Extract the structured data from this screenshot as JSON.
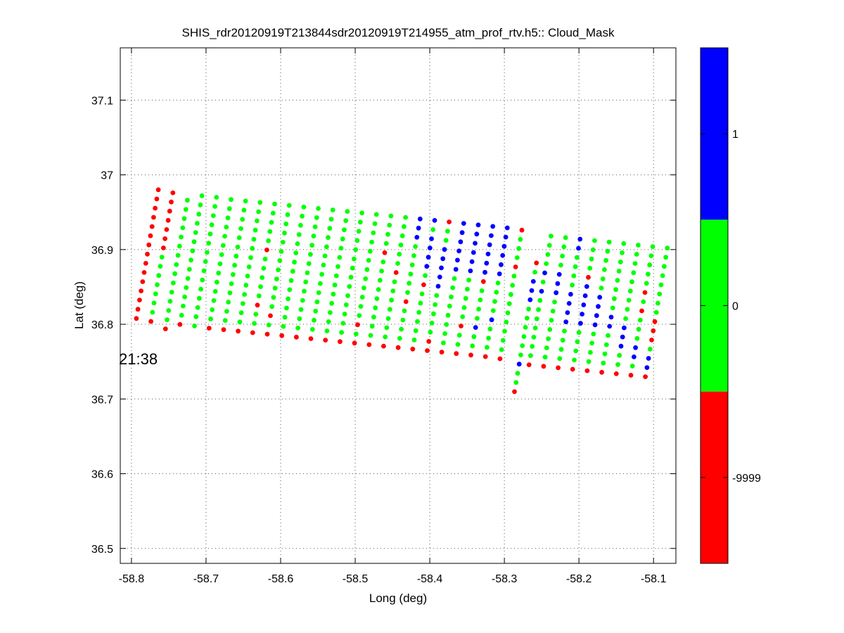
{
  "chart_data": {
    "type": "scatter",
    "title": "SHIS_rdr20120919T213844sdr20120919T214955_atm_prof_rtv.h5:: Cloud_Mask",
    "xlabel": "Long (deg)",
    "ylabel": "Lat (deg)",
    "xlim": [
      -58.815,
      -58.07
    ],
    "ylim": [
      36.48,
      37.17
    ],
    "xticks": [
      -58.8,
      -58.7,
      -58.6,
      -58.5,
      -58.4,
      -58.3,
      -58.2,
      -58.1
    ],
    "xtick_labels": [
      "-58.8",
      "-58.7",
      "-58.6",
      "-58.5",
      "-58.4",
      "-58.3",
      "-58.2",
      "-58.1"
    ],
    "yticks": [
      36.5,
      36.6,
      36.7,
      36.8,
      36.9,
      37.0,
      37.1
    ],
    "ytick_labels": [
      "36.5",
      "36.6",
      "36.7",
      "36.8",
      "36.9",
      "37",
      "37.1"
    ],
    "grid": true,
    "annotation": {
      "text": "21:38",
      "lon": -58.815,
      "lat": 36.754
    },
    "colorbar": {
      "classes": [
        {
          "value": -9999,
          "label": "-9999",
          "color": "#ff0000"
        },
        {
          "value": 0,
          "label": "0",
          "color": "#00ff00"
        },
        {
          "value": 1,
          "label": "1",
          "color": "#0000ff"
        }
      ]
    },
    "scan_blocks": [
      {
        "rows": 15,
        "step_lon": -0.0021,
        "step_lat": -0.0123,
        "lines": [
          {
            "start": [
              -58.764,
              36.98
            ],
            "codes": "RRRRRRRRRRRRRRR"
          },
          {
            "start": [
              -58.7445,
              36.976
            ],
            "codes": "RRRRRRRGGGGGGGR"
          },
          {
            "start": [
              -58.725,
              36.966
            ],
            "codes": "GGGGGGGGGGGGGGR"
          },
          {
            "start": [
              -58.7055,
              36.972
            ],
            "codes": "GGGGGGGGGGGGGGR"
          },
          {
            "start": [
              -58.686,
              36.97
            ],
            "codes": "GGGGGGGGGGGGGGG"
          },
          {
            "start": [
              -58.6665,
              36.967
            ],
            "codes": "GGGGGGGGGGGGGGR"
          },
          {
            "start": [
              -58.647,
              36.965
            ],
            "codes": "GGGGGGGGGGGGGGR"
          },
          {
            "start": [
              -58.6275,
              36.963
            ],
            "codes": "GGGGGGGGGGGGGGR"
          },
          {
            "start": [
              -58.608,
              36.961
            ],
            "codes": "GGGGGRGGGGGRGGR"
          },
          {
            "start": [
              -58.5885,
              36.959
            ],
            "codes": "GGGGGGGGGGGGRGR"
          },
          {
            "start": [
              -58.569,
              36.957
            ],
            "codes": "GGGGGGGGGGGGGGR"
          },
          {
            "start": [
              -58.5495,
              36.955
            ],
            "codes": "GGGGGGGGGGGGGGR"
          },
          {
            "start": [
              -58.53,
              36.953
            ],
            "codes": "GGGGGGGGGGGGGGR"
          },
          {
            "start": [
              -58.5105,
              36.951
            ],
            "codes": "GGGGGGGGGGGGGGR"
          },
          {
            "start": [
              -58.491,
              36.949
            ],
            "codes": "GGGGGGGGGGGGGGR"
          },
          {
            "start": [
              -58.4715,
              36.947
            ],
            "codes": "GGGGGGGGGGGGRGR"
          },
          {
            "start": [
              -58.452,
              36.945
            ],
            "codes": "GGGGRGGGGGGGGGR"
          },
          {
            "start": [
              -58.4325,
              36.943
            ],
            "codes": "GGGGGGRGGGGGGGR"
          },
          {
            "start": [
              -58.413,
              36.941
            ],
            "codes": "BBBGGGGGGRGGGGR"
          },
          {
            "start": [
              -58.3935,
              36.939
            ],
            "codes": "BGBBBBGRGGGGGGR"
          },
          {
            "start": [
              -58.374,
              36.937
            ],
            "codes": "RGGBBBBBGGGGGRR"
          },
          {
            "start": [
              -58.3545,
              36.935
            ],
            "codes": "BBBBBBGGGGGGGGR"
          },
          {
            "start": [
              -58.335,
              36.933
            ],
            "codes": "BBBBBBGGGGGRGGR"
          },
          {
            "start": [
              -58.3155,
              36.931
            ],
            "codes": "BBBBBBRGGGGBGGR"
          },
          {
            "start": [
              -58.296,
              36.929
            ],
            "codes": "BBBBBBGGGGBGGGR"
          },
          {
            "start": [
              -58.2765,
              36.926
            ],
            "codes": "RGGGRGGGGGGGGGR"
          }
        ]
      },
      {
        "rows": 15,
        "step_lon": -0.0021,
        "step_lat": -0.0123,
        "lines": [
          {
            "start": [
              -58.257,
              36.882
            ],
            "codes": "RGBBBGGGGGGBGGR"
          },
          {
            "start": [
              -58.2375,
              36.918
            ],
            "codes": "GGGGBGBGGGGGGGR"
          },
          {
            "start": [
              -58.218,
              36.916
            ],
            "codes": "GGGGBBBGGGGGGGR"
          },
          {
            "start": [
              -58.1985,
              36.914
            ],
            "codes": "BBGGGGBBBBGGGGR"
          },
          {
            "start": [
              -58.179,
              36.912
            ],
            "codes": "GGGGRBBBBBGGGGR"
          },
          {
            "start": [
              -58.1595,
              36.91
            ],
            "codes": "GGGGGGBBBBGGGGR"
          },
          {
            "start": [
              -58.14,
              36.908
            ],
            "codes": "GGGGGGGGBBGGGGR"
          },
          {
            "start": [
              -58.1205,
              36.906
            ],
            "codes": "GGGGGGGGGBBBGGR"
          },
          {
            "start": [
              -58.101,
              36.904
            ],
            "codes": "GGGGGRGRGGGBBGR"
          },
          {
            "start": [
              -58.0815,
              36.902
            ],
            "codes": "GGGGGGGGRRRGBBR"
          }
        ]
      }
    ]
  }
}
